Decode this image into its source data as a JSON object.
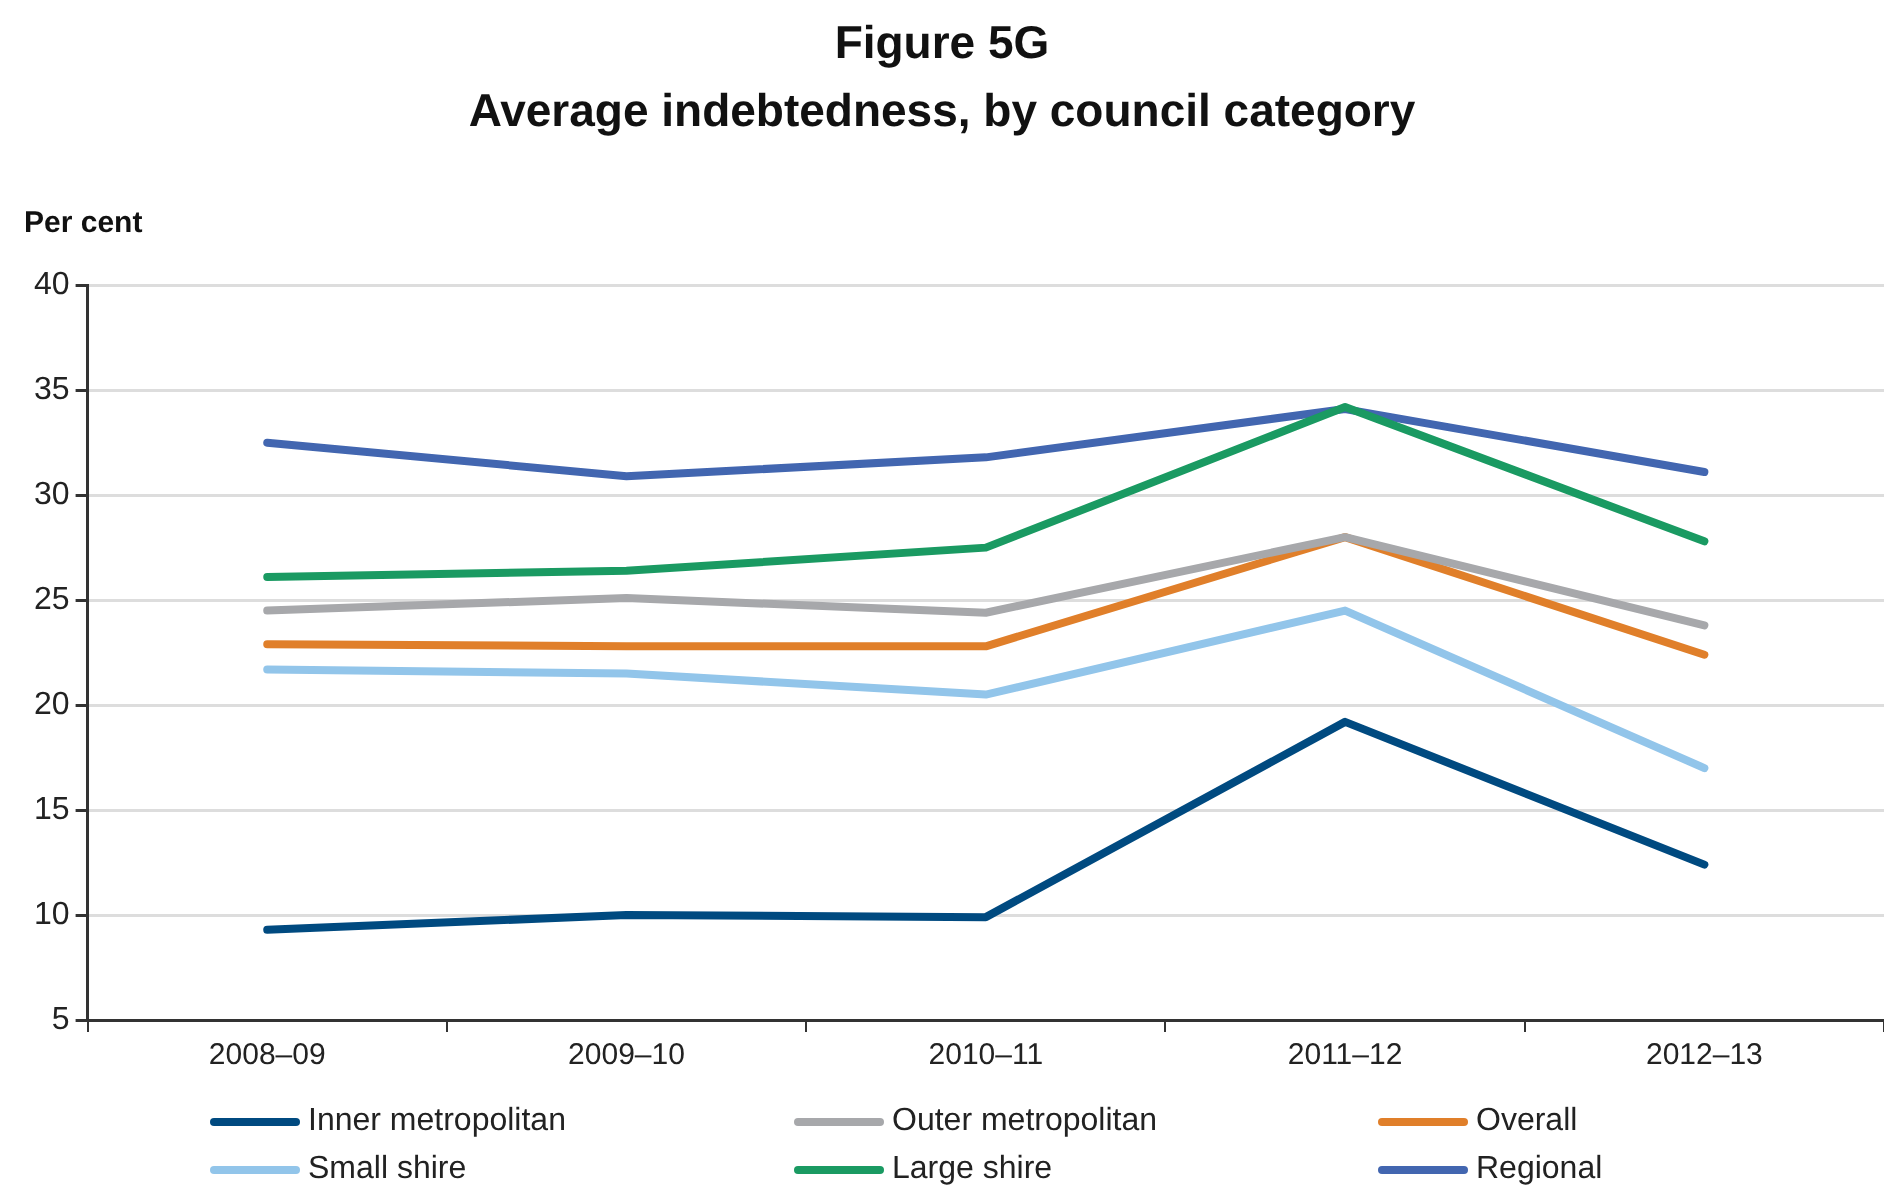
{
  "chart_data": {
    "type": "line",
    "title": "Figure 5G",
    "subtitle": "Average indebtedness, by council category",
    "ylabel": "Per cent",
    "categories": [
      "2008–09",
      "2009–10",
      "2010–11",
      "2011–12",
      "2012–13"
    ],
    "series": [
      {
        "name": "Inner metropolitan",
        "color": "#004a80",
        "values": [
          9.3,
          10.0,
          9.9,
          19.2,
          12.4
        ]
      },
      {
        "name": "Outer metropolitan",
        "color": "#a7a8ab",
        "values": [
          24.5,
          25.1,
          24.4,
          28.0,
          23.8
        ]
      },
      {
        "name": "Overall",
        "color": "#e07f2a",
        "values": [
          22.9,
          22.8,
          22.8,
          28.0,
          22.4
        ]
      },
      {
        "name": "Small shire",
        "color": "#92c5ea",
        "values": [
          21.7,
          21.5,
          20.5,
          24.5,
          17.0
        ]
      },
      {
        "name": "Large shire",
        "color": "#1a9a62",
        "values": [
          26.1,
          26.4,
          27.5,
          34.2,
          27.8
        ]
      },
      {
        "name": "Regional",
        "color": "#4266b0",
        "values": [
          32.5,
          30.9,
          31.8,
          34.1,
          31.1
        ]
      }
    ],
    "ylim": [
      5,
      40
    ],
    "yticks": [
      5,
      10,
      15,
      20,
      25,
      30,
      35,
      40
    ],
    "grid": "y",
    "legend": "bottom",
    "marker": "none",
    "line_style": "solid"
  }
}
